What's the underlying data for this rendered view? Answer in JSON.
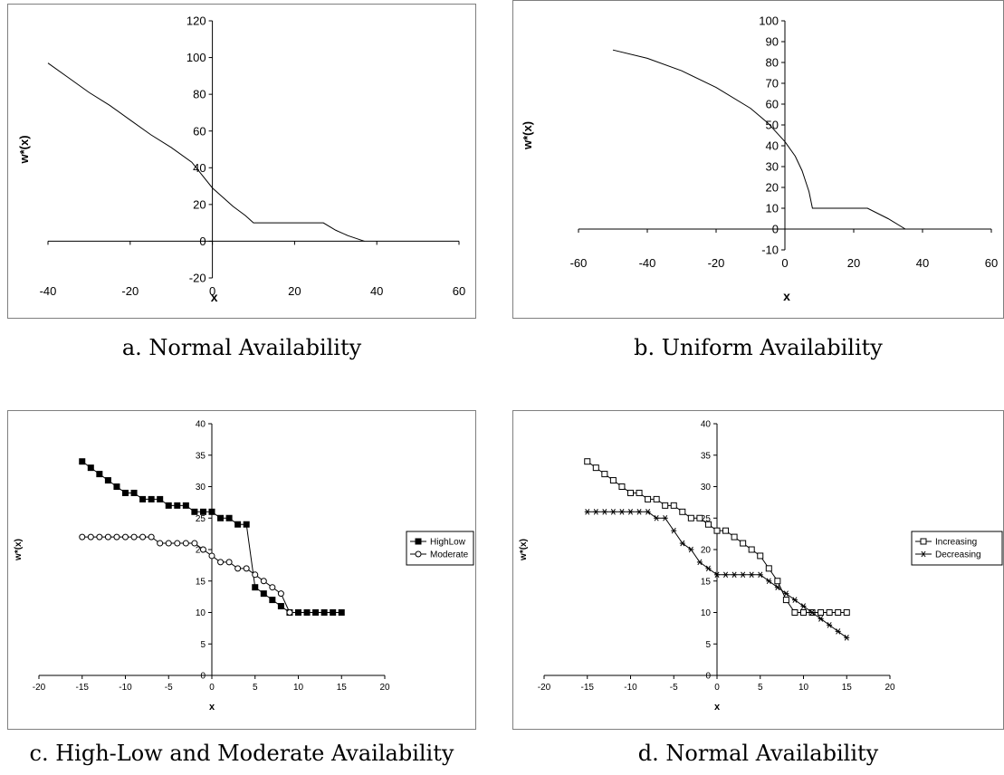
{
  "chart_data": [
    {
      "type": "line",
      "caption": "a. Normal Availability",
      "xlabel": "x",
      "ylabel": "w*(x)",
      "xlim": [
        -40,
        60
      ],
      "ylim": [
        -20,
        120
      ],
      "xticks": [
        -40,
        -20,
        0,
        20,
        40,
        60
      ],
      "yticks": [
        -20,
        0,
        20,
        40,
        60,
        80,
        100,
        120
      ],
      "grid": false,
      "legend": null,
      "series": [
        {
          "name": "",
          "marker": "none",
          "x": [
            -40,
            -35,
            -30,
            -25,
            -20,
            -15,
            -10,
            -5,
            0,
            3,
            5,
            8,
            10,
            12,
            20,
            27,
            30,
            33,
            37
          ],
          "y": [
            97,
            89,
            81,
            74,
            66,
            58,
            51,
            43,
            29,
            23,
            19,
            14,
            10,
            10,
            10,
            10,
            6,
            3,
            0
          ]
        }
      ]
    },
    {
      "type": "line",
      "caption": "b. Uniform Availability",
      "xlabel": "x",
      "ylabel": "w*(x)",
      "xlim": [
        -60,
        60
      ],
      "ylim": [
        -10,
        100
      ],
      "xticks": [
        -60,
        -40,
        -20,
        0,
        20,
        40,
        60
      ],
      "yticks": [
        -10,
        0,
        10,
        20,
        30,
        40,
        50,
        60,
        70,
        80,
        90,
        100
      ],
      "grid": false,
      "legend": null,
      "series": [
        {
          "name": "",
          "marker": "none",
          "x": [
            -50,
            -40,
            -30,
            -20,
            -10,
            -5,
            0,
            3,
            5,
            7,
            8,
            9,
            10,
            15,
            24,
            30,
            35
          ],
          "y": [
            86,
            82,
            76,
            68,
            58,
            51,
            42,
            35,
            28,
            18,
            10,
            10,
            10,
            10,
            10,
            5,
            0
          ]
        }
      ]
    },
    {
      "type": "line",
      "caption": "c. High-Low and Moderate Availability",
      "xlabel": "x",
      "ylabel": "w*(x)",
      "xlim": [
        -20,
        20
      ],
      "ylim": [
        0,
        40
      ],
      "xticks": [
        -20,
        -15,
        -10,
        -5,
        0,
        5,
        10,
        15,
        20
      ],
      "yticks": [
        0,
        5,
        10,
        15,
        20,
        25,
        30,
        35,
        40
      ],
      "grid": false,
      "legend": "right",
      "series": [
        {
          "name": "HighLow",
          "marker": "filled-square",
          "x": [
            -15,
            -14,
            -13,
            -12,
            -11,
            -10,
            -9,
            -8,
            -7,
            -6,
            -5,
            -4,
            -3,
            -2,
            -1,
            0,
            1,
            2,
            3,
            4,
            5,
            6,
            7,
            8,
            9,
            10,
            11,
            12,
            13,
            14,
            15
          ],
          "y": [
            34,
            33,
            32,
            31,
            30,
            29,
            29,
            28,
            28,
            28,
            27,
            27,
            27,
            26,
            26,
            26,
            25,
            25,
            24,
            24,
            14,
            13,
            12,
            11,
            10,
            10,
            10,
            10,
            10,
            10,
            10
          ]
        },
        {
          "name": "Moderate",
          "marker": "open-circle",
          "x": [
            -15,
            -14,
            -13,
            -12,
            -11,
            -10,
            -9,
            -8,
            -7,
            -6,
            -5,
            -4,
            -3,
            -2,
            -1,
            0,
            1,
            2,
            3,
            4,
            5,
            6,
            7,
            8,
            9
          ],
          "y": [
            22,
            22,
            22,
            22,
            22,
            22,
            22,
            22,
            22,
            21,
            21,
            21,
            21,
            21,
            20,
            19,
            18,
            18,
            17,
            17,
            16,
            15,
            14,
            13,
            10
          ]
        }
      ]
    },
    {
      "type": "line",
      "caption": "d. Normal Availability",
      "xlabel": "x",
      "ylabel": "w*(x)",
      "xlim": [
        -20,
        20
      ],
      "ylim": [
        0,
        40
      ],
      "xticks": [
        -20,
        -15,
        -10,
        -5,
        0,
        5,
        10,
        15,
        20
      ],
      "yticks": [
        0,
        5,
        10,
        15,
        20,
        25,
        30,
        35,
        40
      ],
      "grid": false,
      "legend": "right",
      "series": [
        {
          "name": "Increasing",
          "marker": "open-square",
          "x": [
            -15,
            -14,
            -13,
            -12,
            -11,
            -10,
            -9,
            -8,
            -7,
            -6,
            -5,
            -4,
            -3,
            -2,
            -1,
            0,
            1,
            2,
            3,
            4,
            5,
            6,
            7,
            8,
            9,
            10,
            11,
            12,
            13,
            14,
            15
          ],
          "y": [
            34,
            33,
            32,
            31,
            30,
            29,
            29,
            28,
            28,
            27,
            27,
            26,
            25,
            25,
            24,
            23,
            23,
            22,
            21,
            20,
            19,
            17,
            15,
            12,
            10,
            10,
            10,
            10,
            10,
            10,
            10
          ]
        },
        {
          "name": "Decreasing",
          "marker": "asterisk",
          "x": [
            -15,
            -14,
            -13,
            -12,
            -11,
            -10,
            -9,
            -8,
            -7,
            -6,
            -5,
            -4,
            -3,
            -2,
            -1,
            0,
            1,
            2,
            3,
            4,
            5,
            6,
            7,
            8,
            9,
            10,
            11,
            12,
            13,
            14,
            15
          ],
          "y": [
            26,
            26,
            26,
            26,
            26,
            26,
            26,
            26,
            25,
            25,
            23,
            21,
            20,
            18,
            17,
            16,
            16,
            16,
            16,
            16,
            16,
            15,
            14,
            13,
            12,
            11,
            10,
            9,
            8,
            7,
            6
          ]
        }
      ]
    }
  ]
}
